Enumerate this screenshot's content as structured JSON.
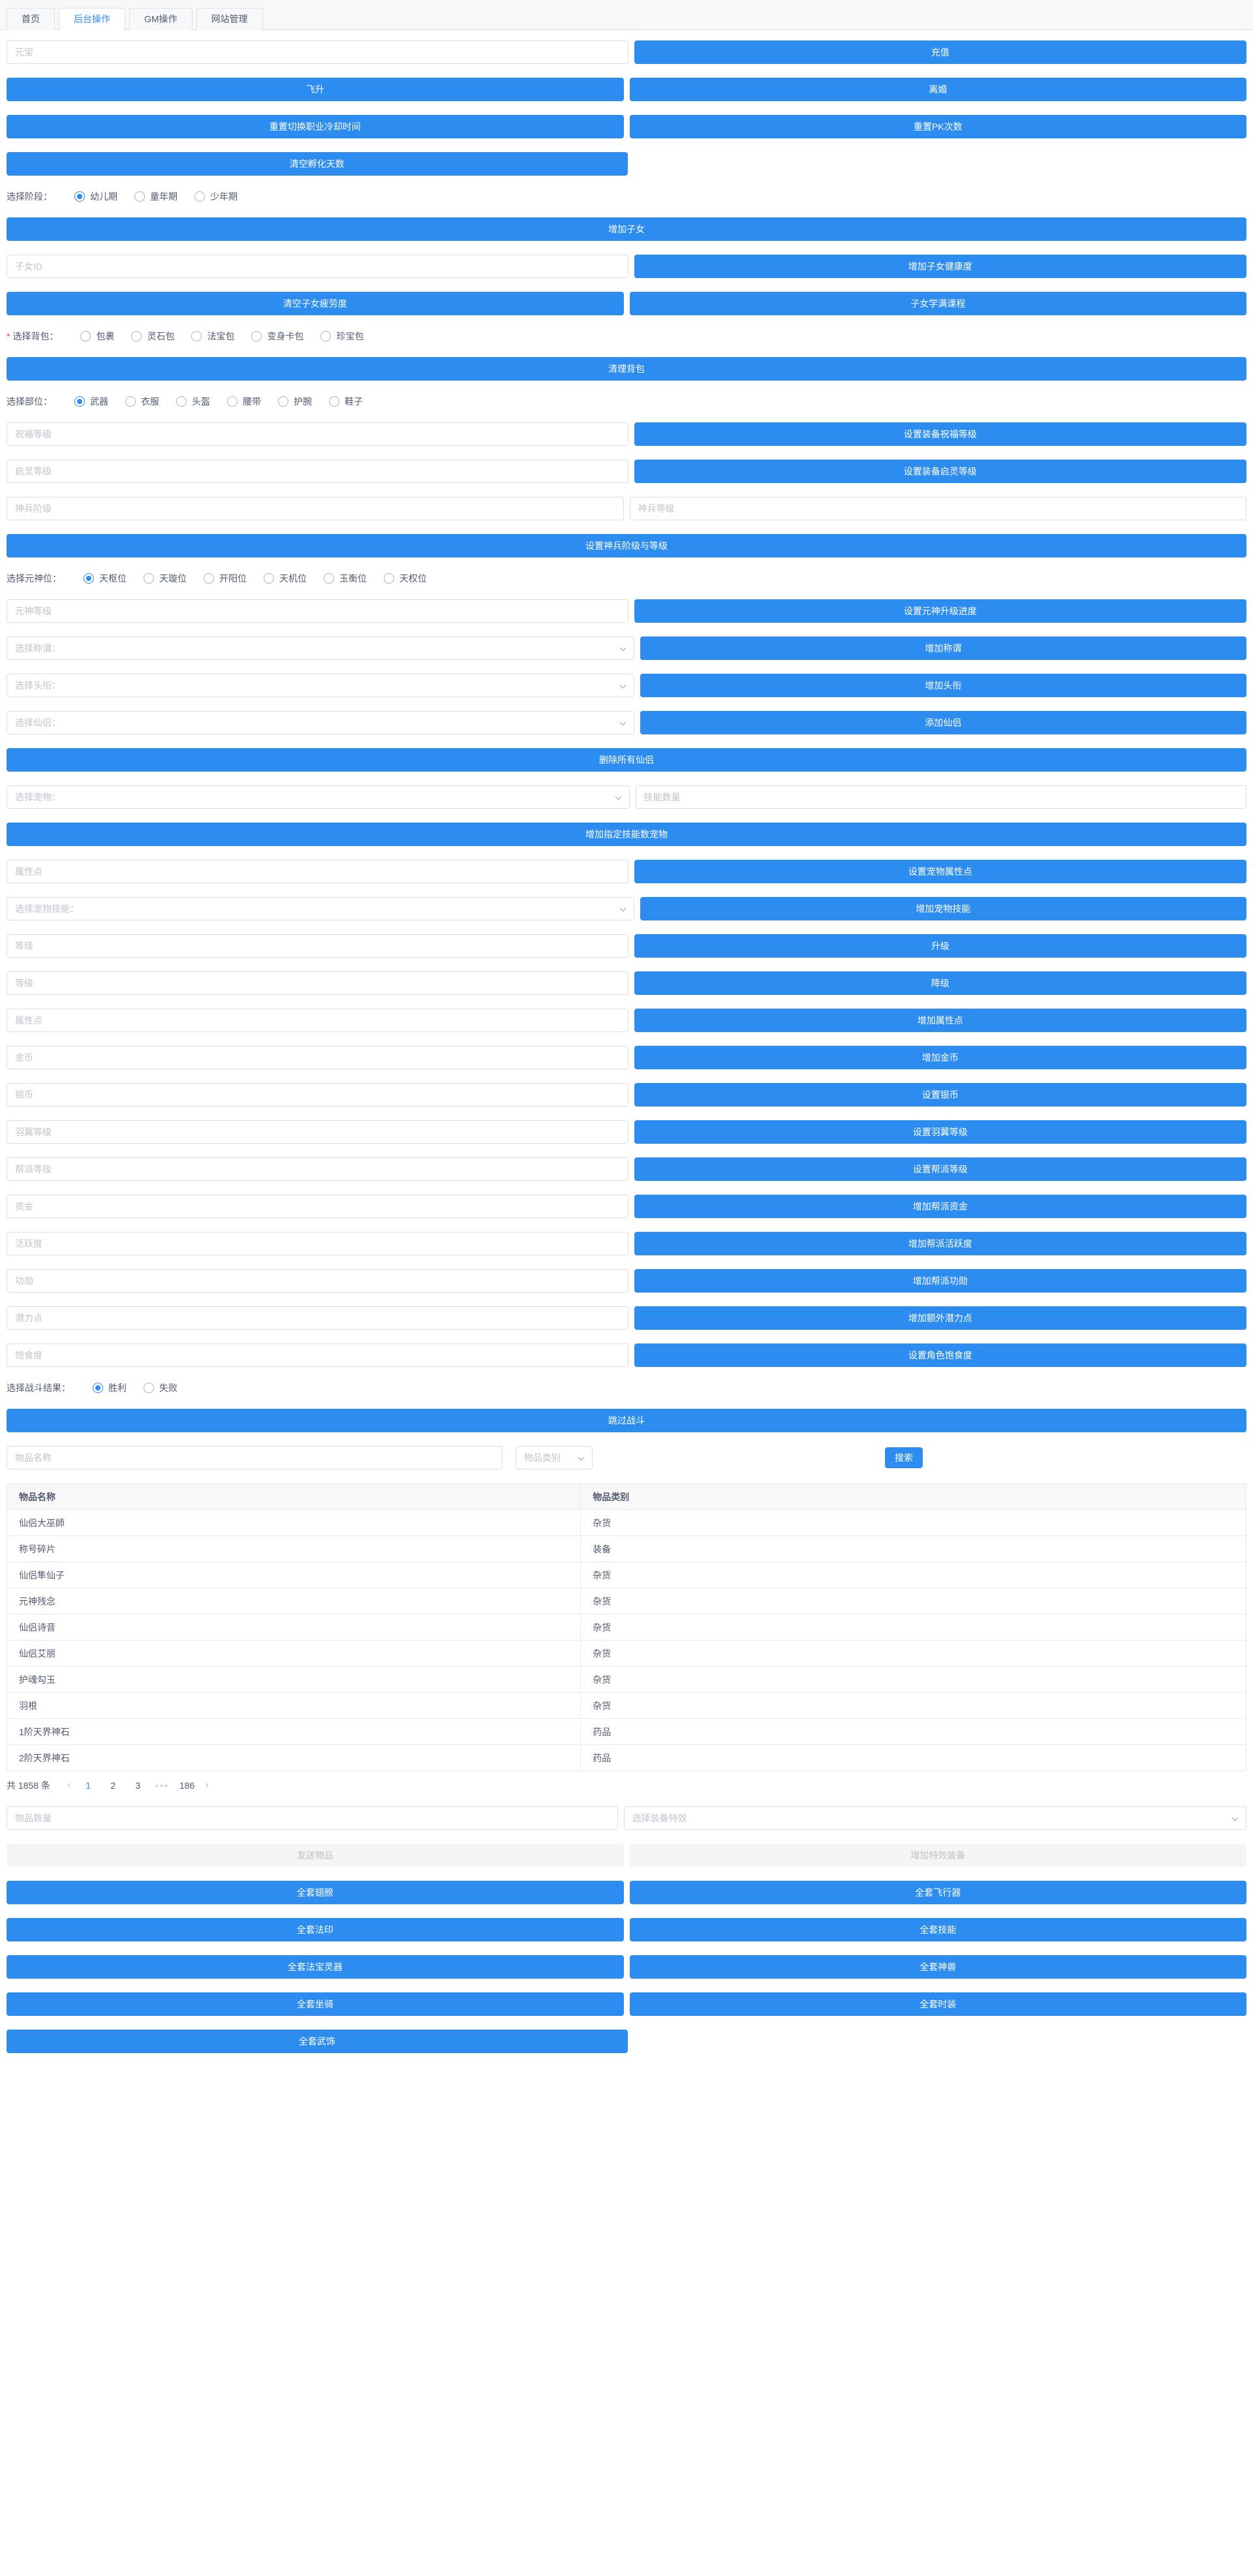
{
  "colors": {
    "primary": "#2d8cf0",
    "required_mark": "#ed4014"
  },
  "tab_bar": {
    "tabs": [
      {
        "label": "首页",
        "active": false
      },
      {
        "label": "后台操作",
        "active": true
      },
      {
        "label": "GM操作",
        "active": false
      },
      {
        "label": "网站管理",
        "active": false
      }
    ]
  },
  "blocks": [
    {
      "type": "row",
      "left": {
        "kind": "input",
        "placeholder": "元宝"
      },
      "right": {
        "kind": "button",
        "label": "充值"
      }
    },
    {
      "type": "row",
      "left": {
        "kind": "button",
        "label": "飞升"
      },
      "right": {
        "kind": "button",
        "label": "离婚"
      }
    },
    {
      "type": "row",
      "left": {
        "kind": "button",
        "label": "重置切换职业冷却时间"
      },
      "right": {
        "kind": "button",
        "label": "重置PK次数"
      }
    },
    {
      "type": "row",
      "left": {
        "kind": "button",
        "label": "清空孵化天数"
      },
      "right": null
    },
    {
      "type": "radios",
      "label": "选择阶段：",
      "required": false,
      "options": [
        {
          "label": "幼儿期",
          "selected": true
        },
        {
          "label": "童年期",
          "selected": false
        },
        {
          "label": "少年期",
          "selected": false
        }
      ]
    },
    {
      "type": "header",
      "label": "增加子女"
    },
    {
      "type": "row",
      "left": {
        "kind": "input",
        "placeholder": "子女ID"
      },
      "right": {
        "kind": "button",
        "label": "增加子女健康度"
      }
    },
    {
      "type": "row",
      "left": {
        "kind": "button",
        "label": "清空子女疲劳度"
      },
      "right": {
        "kind": "button",
        "label": "子女学满课程"
      }
    },
    {
      "type": "radios",
      "label": "选择背包：",
      "required": true,
      "options": [
        {
          "label": "包裹",
          "selected": false
        },
        {
          "label": "灵石包",
          "selected": false
        },
        {
          "label": "法宝包",
          "selected": false
        },
        {
          "label": "变身卡包",
          "selected": false
        },
        {
          "label": "珍宝包",
          "selected": false
        }
      ]
    },
    {
      "type": "header",
      "label": "清理背包"
    },
    {
      "type": "radios",
      "label": "选择部位：",
      "required": false,
      "options": [
        {
          "label": "武器",
          "selected": true
        },
        {
          "label": "衣服",
          "selected": false
        },
        {
          "label": "头盔",
          "selected": false
        },
        {
          "label": "腰带",
          "selected": false
        },
        {
          "label": "护腕",
          "selected": false
        },
        {
          "label": "鞋子",
          "selected": false
        }
      ]
    },
    {
      "type": "row",
      "left": {
        "kind": "input",
        "placeholder": "祝福等级"
      },
      "right": {
        "kind": "button",
        "label": "设置装备祝福等级"
      }
    },
    {
      "type": "row",
      "left": {
        "kind": "input",
        "placeholder": "启灵等级"
      },
      "right": {
        "kind": "button",
        "label": "设置装备启灵等级"
      }
    },
    {
      "type": "row",
      "left": {
        "kind": "input",
        "placeholder": "神兵阶级"
      },
      "right": {
        "kind": "input",
        "placeholder": "神兵等级"
      }
    },
    {
      "type": "header",
      "label": "设置神兵阶级与等级"
    },
    {
      "type": "radios",
      "label": "选择元神位：",
      "required": false,
      "options": [
        {
          "label": "天枢位",
          "selected": true
        },
        {
          "label": "天璇位",
          "selected": false
        },
        {
          "label": "开阳位",
          "selected": false
        },
        {
          "label": "天机位",
          "selected": false
        },
        {
          "label": "玉衡位",
          "selected": false
        },
        {
          "label": "天权位",
          "selected": false
        }
      ]
    },
    {
      "type": "row",
      "left": {
        "kind": "input",
        "placeholder": "元神等级"
      },
      "right": {
        "kind": "button",
        "label": "设置元神升级进度"
      }
    },
    {
      "type": "row",
      "left": {
        "kind": "select",
        "placeholder": "选择称谓："
      },
      "right": {
        "kind": "button",
        "label": "增加称谓"
      }
    },
    {
      "type": "row",
      "left": {
        "kind": "select",
        "placeholder": "选择头衔："
      },
      "right": {
        "kind": "button",
        "label": "增加头衔"
      }
    },
    {
      "type": "row",
      "left": {
        "kind": "select",
        "placeholder": "选择仙侣："
      },
      "right": {
        "kind": "button",
        "label": "添加仙侣"
      }
    },
    {
      "type": "header",
      "label": "删除所有仙侣"
    },
    {
      "type": "row",
      "left": {
        "kind": "select",
        "placeholder": "选择宠物："
      },
      "right": {
        "kind": "input",
        "placeholder": "技能数量"
      }
    },
    {
      "type": "header",
      "label": "增加指定技能数宠物"
    },
    {
      "type": "row",
      "left": {
        "kind": "input",
        "placeholder": "属性点"
      },
      "right": {
        "kind": "button",
        "label": "设置宠物属性点"
      }
    },
    {
      "type": "row",
      "left": {
        "kind": "select",
        "placeholder": "选择宠物技能："
      },
      "right": {
        "kind": "button",
        "label": "增加宠物技能"
      }
    },
    {
      "type": "row",
      "left": {
        "kind": "input",
        "placeholder": "等级"
      },
      "right": {
        "kind": "button",
        "label": "升级"
      }
    },
    {
      "type": "row",
      "left": {
        "kind": "input",
        "placeholder": "等级"
      },
      "right": {
        "kind": "button",
        "label": "降级"
      }
    },
    {
      "type": "row",
      "left": {
        "kind": "input",
        "placeholder": "属性点"
      },
      "right": {
        "kind": "button",
        "label": "增加属性点"
      }
    },
    {
      "type": "row",
      "left": {
        "kind": "input",
        "placeholder": "金币"
      },
      "right": {
        "kind": "button",
        "label": "增加金币"
      }
    },
    {
      "type": "row",
      "left": {
        "kind": "input",
        "placeholder": "银币"
      },
      "right": {
        "kind": "button",
        "label": "设置银币"
      }
    },
    {
      "type": "row",
      "left": {
        "kind": "input",
        "placeholder": "羽翼等级"
      },
      "right": {
        "kind": "button",
        "label": "设置羽翼等级"
      }
    },
    {
      "type": "row",
      "left": {
        "kind": "input",
        "placeholder": "帮派等级"
      },
      "right": {
        "kind": "button",
        "label": "设置帮派等级"
      }
    },
    {
      "type": "row",
      "left": {
        "kind": "input",
        "placeholder": "资金"
      },
      "right": {
        "kind": "button",
        "label": "增加帮派资金"
      }
    },
    {
      "type": "row",
      "left": {
        "kind": "input",
        "placeholder": "活跃度"
      },
      "right": {
        "kind": "button",
        "label": "增加帮派活跃度"
      }
    },
    {
      "type": "row",
      "left": {
        "kind": "input",
        "placeholder": "功勋"
      },
      "right": {
        "kind": "button",
        "label": "增加帮派功勋"
      }
    },
    {
      "type": "row",
      "left": {
        "kind": "input",
        "placeholder": "潜力点"
      },
      "right": {
        "kind": "button",
        "label": "增加额外潜力点"
      }
    },
    {
      "type": "row",
      "left": {
        "kind": "input",
        "placeholder": "饱食度"
      },
      "right": {
        "kind": "button",
        "label": "设置角色饱食度"
      }
    },
    {
      "type": "radios",
      "label": "选择战斗结果：",
      "required": false,
      "options": [
        {
          "label": "胜利",
          "selected": true
        },
        {
          "label": "失败",
          "selected": false
        }
      ]
    },
    {
      "type": "header",
      "label": "跳过战斗"
    },
    {
      "type": "search",
      "input_placeholder": "物品名称",
      "select_placeholder": "物品类别",
      "button_label": "搜索"
    },
    {
      "type": "table"
    },
    {
      "type": "pagination"
    },
    {
      "type": "row",
      "left": {
        "kind": "input",
        "placeholder": "物品数量"
      },
      "right": {
        "kind": "select",
        "placeholder": "选择装备特效"
      }
    },
    {
      "type": "row",
      "left": {
        "kind": "disabled",
        "label": "发送物品"
      },
      "right": {
        "kind": "disabled",
        "label": "增加特效装备"
      }
    },
    {
      "type": "row",
      "left": {
        "kind": "button",
        "label": "全套翅膀"
      },
      "right": {
        "kind": "button",
        "label": "全套飞行器"
      }
    },
    {
      "type": "row",
      "left": {
        "kind": "button",
        "label": "全套法印"
      },
      "right": {
        "kind": "button",
        "label": "全套技能"
      }
    },
    {
      "type": "row",
      "left": {
        "kind": "button",
        "label": "全套法宝灵器"
      },
      "right": {
        "kind": "button",
        "label": "全套神兽"
      }
    },
    {
      "type": "row",
      "left": {
        "kind": "button",
        "label": "全套坐骑"
      },
      "right": {
        "kind": "button",
        "label": "全套时装"
      }
    },
    {
      "type": "row",
      "left": {
        "kind": "button",
        "label": "全套武饰"
      },
      "right": null
    }
  ],
  "table": {
    "headers": [
      "物品名称",
      "物品类别"
    ],
    "rows": [
      [
        "仙侣大巫師",
        "杂货"
      ],
      [
        "称号碎片",
        "装备"
      ],
      [
        "仙侣隼仙子",
        "杂货"
      ],
      [
        "元神残念",
        "杂货"
      ],
      [
        "仙侣诗音",
        "杂货"
      ],
      [
        "仙侣艾丽",
        "杂货"
      ],
      [
        "护魂勾玉",
        "杂货"
      ],
      [
        "羽根",
        "杂货"
      ],
      [
        "1阶天界神石",
        "药品"
      ],
      [
        "2阶天界神石",
        "药品"
      ]
    ]
  },
  "pagination": {
    "total_text": "共 1858 条",
    "prev": "‹",
    "pages": [
      "1",
      "2",
      "3"
    ],
    "current": "1",
    "ellipsis": "•••",
    "last_page": "186",
    "next": "›"
  }
}
